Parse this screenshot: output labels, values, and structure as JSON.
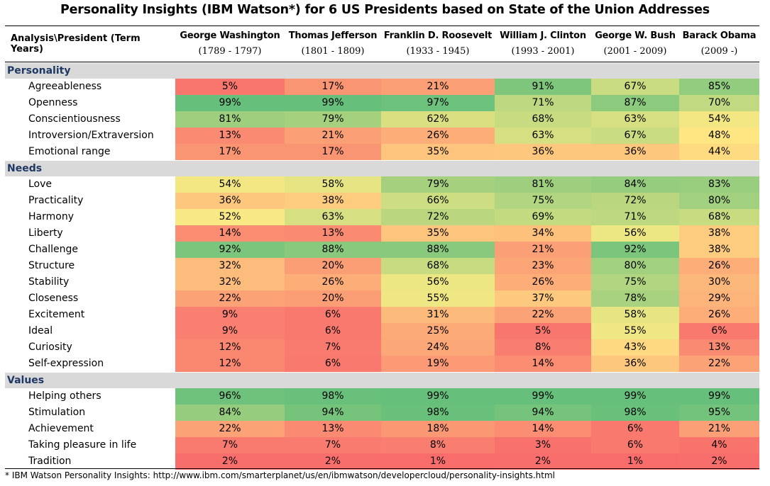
{
  "title": "Personality Insights (IBM Watson*) for 6 US Presidents based on State of the Union Addresses",
  "footnote": "* IBM Watson Personality Insights: http://www.ibm.com/smarterplanet/us/en/ibmwatson/developercloud/personality-insights.html",
  "colors": {
    "low": "#f8696b",
    "mid": "#ffeb84",
    "high": "#63be7b",
    "section_bg": "#d9d9d9",
    "section_text": "#1f3864"
  },
  "chart_data": {
    "type": "heatmap",
    "title": "Personality Insights (IBM Watson*) for 6 US Presidents based on State of the Union Addresses",
    "corner_label": "Analysis\\President (Term Years)",
    "columns": [
      {
        "name": "George Washington",
        "years": "(1789 - 1797)"
      },
      {
        "name": "Thomas Jefferson",
        "years": "(1801 - 1809)"
      },
      {
        "name": "Franklin D. Roosevelt",
        "years": "(1933 - 1945)"
      },
      {
        "name": "William J. Clinton",
        "years": "(1993 - 2001)"
      },
      {
        "name": "George W. Bush",
        "years": "(2001 - 2009)"
      },
      {
        "name": "Barack Obama",
        "years": "(2009 -)"
      }
    ],
    "unit": "%",
    "sections": [
      {
        "name": "Personality",
        "rows": [
          {
            "label": "Agreeableness",
            "values": [
              5,
              17,
              21,
              91,
              67,
              85
            ]
          },
          {
            "label": "Openness",
            "values": [
              99,
              99,
              97,
              71,
              87,
              70
            ]
          },
          {
            "label": "Conscientiousness",
            "values": [
              81,
              79,
              62,
              68,
              63,
              54
            ]
          },
          {
            "label": "Introversion/Extraversion",
            "values": [
              13,
              21,
              26,
              63,
              67,
              48
            ]
          },
          {
            "label": "Emotional range",
            "values": [
              17,
              17,
              35,
              36,
              36,
              44
            ]
          }
        ]
      },
      {
        "name": "Needs",
        "rows": [
          {
            "label": "Love",
            "values": [
              54,
              58,
              79,
              81,
              84,
              83
            ]
          },
          {
            "label": "Practicality",
            "values": [
              36,
              38,
              66,
              75,
              72,
              80
            ]
          },
          {
            "label": "Harmony",
            "values": [
              52,
              63,
              72,
              69,
              71,
              68
            ]
          },
          {
            "label": "Liberty",
            "values": [
              14,
              13,
              35,
              34,
              56,
              38
            ]
          },
          {
            "label": "Challenge",
            "values": [
              92,
              88,
              88,
              21,
              92,
              38
            ]
          },
          {
            "label": "Structure",
            "values": [
              32,
              20,
              68,
              23,
              80,
              26
            ]
          },
          {
            "label": "Stability",
            "values": [
              32,
              26,
              56,
              26,
              75,
              30
            ]
          },
          {
            "label": "Closeness",
            "values": [
              22,
              20,
              55,
              37,
              78,
              29
            ]
          },
          {
            "label": "Excitement",
            "values": [
              9,
              6,
              31,
              22,
              58,
              26
            ]
          },
          {
            "label": "Ideal",
            "values": [
              9,
              6,
              25,
              5,
              55,
              6
            ]
          },
          {
            "label": "Curiosity",
            "values": [
              12,
              7,
              24,
              8,
              43,
              13
            ]
          },
          {
            "label": "Self-expression",
            "values": [
              12,
              6,
              19,
              14,
              36,
              22
            ]
          }
        ]
      },
      {
        "name": "Values",
        "rows": [
          {
            "label": "Helping others",
            "values": [
              96,
              98,
              99,
              99,
              99,
              99
            ]
          },
          {
            "label": "Stimulation",
            "values": [
              84,
              94,
              98,
              94,
              98,
              95
            ]
          },
          {
            "label": "Achievement",
            "values": [
              22,
              13,
              18,
              14,
              6,
              21
            ]
          },
          {
            "label": "Taking pleasure in life",
            "values": [
              7,
              7,
              8,
              3,
              6,
              4
            ]
          },
          {
            "label": "Tradition",
            "values": [
              2,
              2,
              1,
              2,
              1,
              2
            ]
          }
        ]
      }
    ]
  }
}
